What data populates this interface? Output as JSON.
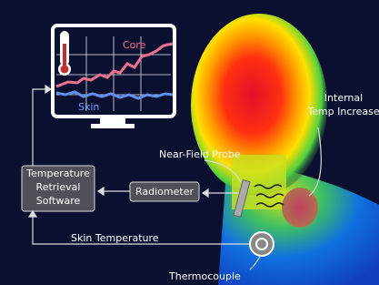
{
  "monitor": {
    "core_label": "Core",
    "skin_label": "Skin"
  },
  "boxes": {
    "software": [
      "Temperature",
      "Retrieval",
      "Software"
    ],
    "radiometer": "Radiometer"
  },
  "labels": {
    "probe": "Near-Field Probe",
    "internal": [
      "Internal",
      "Temp Increase"
    ],
    "skin_temperature": "Skin Temperature",
    "thermocouple": "Thermocouple"
  }
}
